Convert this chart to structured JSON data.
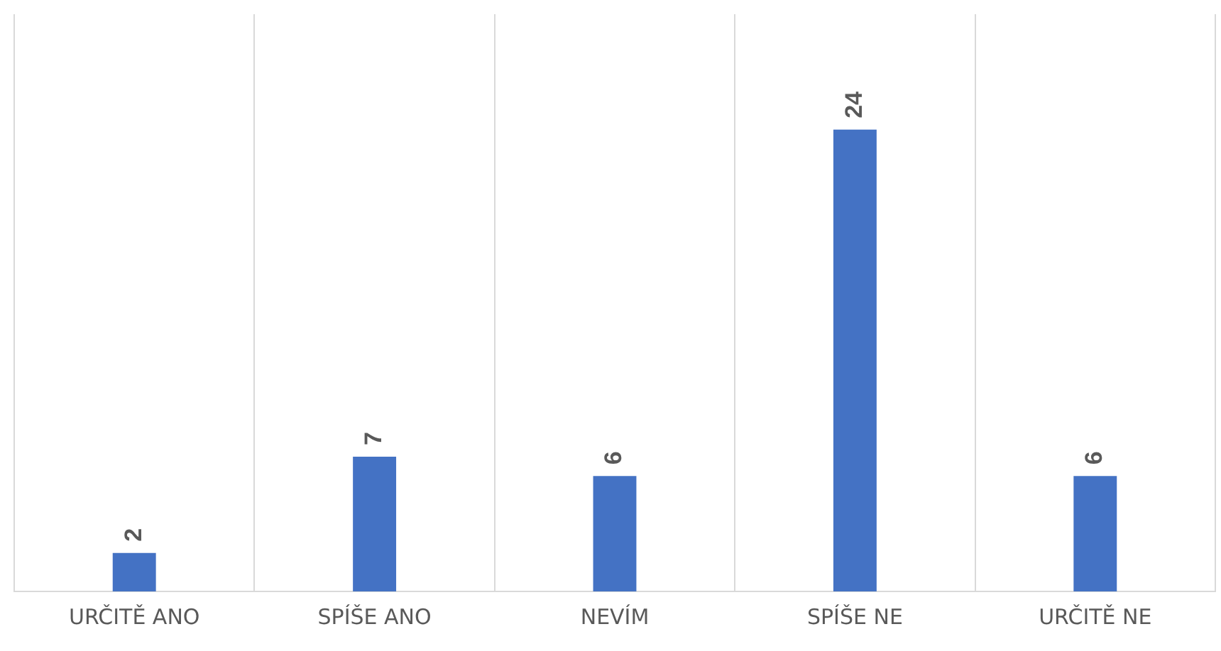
{
  "chart_data": {
    "type": "bar",
    "categories": [
      "URČITĚ ANO",
      "SPÍŠE ANO",
      "NEVÍM",
      "SPÍŠE NE",
      "URČITĚ NE"
    ],
    "values": [
      2,
      7,
      6,
      24,
      6
    ],
    "color": "#4472c4",
    "data_labels": true,
    "grid": "x",
    "legend": false
  }
}
